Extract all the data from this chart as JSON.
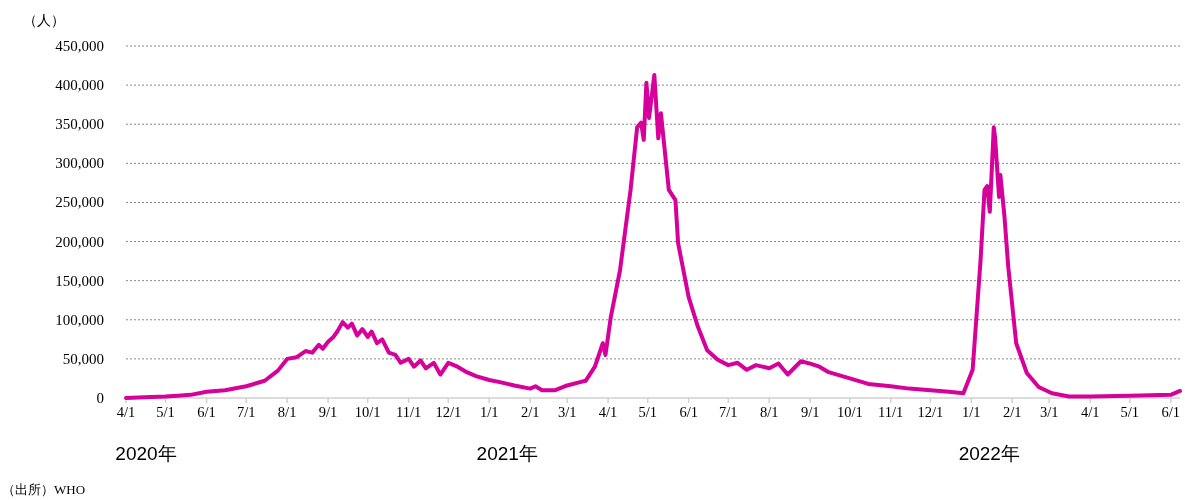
{
  "chart_data": {
    "type": "line",
    "ylabel": "（人）",
    "grid": "y",
    "marker": "none",
    "line_style": "solid",
    "xlim": [
      "2020-04-01",
      "2022-06-08"
    ],
    "ylim": [
      0,
      450000
    ],
    "yticks": [
      0,
      {
        "value": 50000,
        "label": "50,000"
      },
      {
        "value": 100000,
        "label": "100,000"
      },
      {
        "value": 150000,
        "label": "150,000"
      },
      {
        "value": 200000,
        "label": "200,000"
      },
      {
        "value": 250000,
        "label": "250,000"
      },
      {
        "value": 300000,
        "label": "300,000"
      },
      {
        "value": 350000,
        "label": "350,000"
      },
      {
        "value": 400000,
        "label": "400,000"
      },
      {
        "value": 450000,
        "label": "450,000"
      }
    ],
    "xticks": [
      {
        "value": "2020-04-01",
        "label": "4/1"
      },
      {
        "value": "2020-05-01",
        "label": "5/1"
      },
      {
        "value": "2020-06-01",
        "label": "6/1"
      },
      {
        "value": "2020-07-01",
        "label": "7/1"
      },
      {
        "value": "2020-08-01",
        "label": "8/1"
      },
      {
        "value": "2020-09-01",
        "label": "9/1"
      },
      {
        "value": "2020-10-01",
        "label": "10/1"
      },
      {
        "value": "2020-11-01",
        "label": "11/1"
      },
      {
        "value": "2020-12-01",
        "label": "12/1"
      },
      {
        "value": "2021-01-01",
        "label": "1/1"
      },
      {
        "value": "2021-02-01",
        "label": "2/1"
      },
      {
        "value": "2021-03-01",
        "label": "3/1"
      },
      {
        "value": "2021-04-01",
        "label": "4/1"
      },
      {
        "value": "2021-05-01",
        "label": "5/1"
      },
      {
        "value": "2021-06-01",
        "label": "6/1"
      },
      {
        "value": "2021-07-01",
        "label": "7/1"
      },
      {
        "value": "2021-08-01",
        "label": "8/1"
      },
      {
        "value": "2021-09-01",
        "label": "9/1"
      },
      {
        "value": "2021-10-01",
        "label": "10/1"
      },
      {
        "value": "2021-11-01",
        "label": "11/1"
      },
      {
        "value": "2021-12-01",
        "label": "12/1"
      },
      {
        "value": "2022-01-01",
        "label": "1/1"
      },
      {
        "value": "2022-02-01",
        "label": "2/1"
      },
      {
        "value": "2022-03-01",
        "label": "3/1"
      },
      {
        "value": "2022-04-01",
        "label": "4/1"
      },
      {
        "value": "2022-05-01",
        "label": "5/1"
      },
      {
        "value": "2022-06-01",
        "label": "6/1"
      }
    ],
    "annotations": [
      "2020年",
      "2021年",
      "2022年",
      "（出所）WHO"
    ],
    "series": [
      {
        "color": "#d6009a",
        "x": [
          "2020-04-01",
          "2020-04-15",
          "2020-05-01",
          "2020-05-10",
          "2020-05-20",
          "2020-06-01",
          "2020-06-15",
          "2020-07-01",
          "2020-07-15",
          "2020-07-25",
          "2020-08-01",
          "2020-08-08",
          "2020-08-15",
          "2020-08-20",
          "2020-08-25",
          "2020-08-28",
          "2020-09-01",
          "2020-09-05",
          "2020-09-08",
          "2020-09-12",
          "2020-09-16",
          "2020-09-19",
          "2020-09-23",
          "2020-09-27",
          "2020-10-01",
          "2020-10-04",
          "2020-10-08",
          "2020-10-12",
          "2020-10-17",
          "2020-10-22",
          "2020-10-26",
          "2020-11-01",
          "2020-11-05",
          "2020-11-10",
          "2020-11-14",
          "2020-11-20",
          "2020-11-25",
          "2020-12-01",
          "2020-12-08",
          "2020-12-15",
          "2020-12-22",
          "2021-01-01",
          "2021-01-10",
          "2021-01-20",
          "2021-02-01",
          "2021-02-05",
          "2021-02-10",
          "2021-02-20",
          "2021-03-01",
          "2021-03-10",
          "2021-03-15",
          "2021-03-22",
          "2021-03-28",
          "2021-03-30",
          "2021-04-03",
          "2021-04-10",
          "2021-04-18",
          "2021-04-23",
          "2021-04-26",
          "2021-04-28",
          "2021-04-30",
          "2021-05-02",
          "2021-05-06",
          "2021-05-09",
          "2021-05-11",
          "2021-05-17",
          "2021-05-22",
          "2021-05-24",
          "2021-06-01",
          "2021-06-08",
          "2021-06-15",
          "2021-06-23",
          "2021-07-01",
          "2021-07-08",
          "2021-07-15",
          "2021-07-22",
          "2021-08-01",
          "2021-08-08",
          "2021-08-15",
          "2021-08-25",
          "2021-09-01",
          "2021-09-08",
          "2021-09-15",
          "2021-10-01",
          "2021-10-15",
          "2021-11-01",
          "2021-11-15",
          "2021-12-01",
          "2021-12-15",
          "2021-12-26",
          "2022-01-02",
          "2022-01-08",
          "2022-01-11",
          "2022-01-13",
          "2022-01-15",
          "2022-01-18",
          "2022-01-19",
          "2022-01-22",
          "2022-01-23",
          "2022-01-26",
          "2022-01-29",
          "2022-02-04",
          "2022-02-12",
          "2022-02-21",
          "2022-03-03",
          "2022-03-16",
          "2022-04-01",
          "2022-05-01",
          "2022-06-01",
          "2022-06-08"
        ],
        "values": [
          0,
          1000,
          2000,
          3000,
          4000,
          8000,
          10000,
          15000,
          22000,
          35000,
          50000,
          52000,
          60000,
          58000,
          68000,
          63000,
          72000,
          78000,
          85000,
          97000,
          90000,
          95000,
          80000,
          88000,
          78000,
          85000,
          70000,
          75000,
          58000,
          55000,
          45000,
          50000,
          40000,
          48000,
          38000,
          45000,
          30000,
          45000,
          40000,
          33000,
          28000,
          23000,
          20000,
          16000,
          12000,
          15000,
          10000,
          10000,
          16000,
          20000,
          22000,
          40000,
          70000,
          55000,
          103000,
          163000,
          266000,
          346000,
          352000,
          330000,
          403000,
          358000,
          413000,
          332000,
          364000,
          266000,
          253000,
          198000,
          129000,
          91000,
          61000,
          49000,
          42000,
          45000,
          36000,
          42000,
          38000,
          44000,
          30000,
          47000,
          44000,
          40000,
          33000,
          25000,
          18000,
          15000,
          12000,
          10000,
          8000,
          6000,
          36000,
          176000,
          266000,
          271000,
          238000,
          346000,
          333000,
          257000,
          285000,
          234000,
          167000,
          70000,
          32000,
          14000,
          6000,
          2000,
          2000,
          3000,
          4000,
          9000
        ]
      }
    ]
  }
}
